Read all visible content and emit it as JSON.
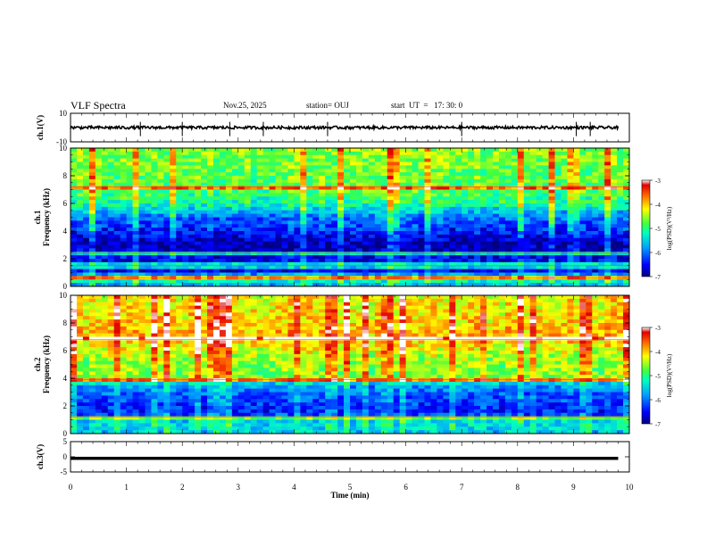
{
  "header": {
    "title": "VLF Spectra",
    "date": "Nov.25, 2025",
    "station": "station= OUJ",
    "start": "start  UT  =   17: 30: 0"
  },
  "chart_data": [
    {
      "type": "line",
      "name": "ch1-waveform",
      "ylabel": "ch.1(V)",
      "ylim": [
        -10,
        10
      ],
      "yticks": [
        10,
        -10
      ],
      "xlim": [
        0,
        10
      ],
      "baseline": 0,
      "noise_amplitude": 1,
      "spike_times_min": [
        1.25,
        2.0,
        2.85,
        3.45,
        4.6,
        7.0,
        9.05,
        9.3
      ],
      "trace_end_min": 9.8
    },
    {
      "type": "heatmap",
      "name": "ch1-spectrogram",
      "ylabel": "ch.1\nFrequency (kHz)",
      "ylim": [
        0,
        10
      ],
      "yticks": [
        0,
        2,
        4,
        6,
        8,
        10
      ],
      "xlim": [
        0,
        10
      ],
      "colorbar": {
        "label": "log(PSD)(V²/Hz)",
        "range": [
          -7,
          -3
        ],
        "ticks": [
          -3,
          -4,
          -5,
          -6,
          -7
        ]
      },
      "band_profile_khz": [
        {
          "f": 0,
          "v": -5.8
        },
        {
          "f": 0.6,
          "v": -5.0
        },
        {
          "f": 1.2,
          "v": -6.8
        },
        {
          "f": 2.0,
          "v": -6.5
        },
        {
          "f": 3.0,
          "v": -6.9
        },
        {
          "f": 4.0,
          "v": -6.4
        },
        {
          "f": 5.0,
          "v": -6.0
        },
        {
          "f": 6.0,
          "v": -5.1
        },
        {
          "f": 7.0,
          "v": -4.8
        },
        {
          "f": 8.5,
          "v": -4.7
        },
        {
          "f": 10,
          "v": -4.6
        }
      ],
      "bright_lines_khz": [
        0.6,
        1.5,
        2.4,
        7.2
      ]
    },
    {
      "type": "heatmap",
      "name": "ch2-spectrogram",
      "ylabel": "ch.2\nFrequency (kHz)",
      "ylim": [
        0,
        10
      ],
      "yticks": [
        0,
        2,
        4,
        6,
        8,
        10
      ],
      "xlim": [
        0,
        10
      ],
      "colorbar": {
        "label": "log(PSD)(V²/Hz)",
        "range": [
          -7,
          -3
        ],
        "ticks": [
          -3,
          -4,
          -5,
          -6,
          -7
        ]
      },
      "band_profile_khz": [
        {
          "f": 0,
          "v": -5.6
        },
        {
          "f": 0.8,
          "v": -5.4
        },
        {
          "f": 1.5,
          "v": -6.4
        },
        {
          "f": 2.5,
          "v": -6.2
        },
        {
          "f": 3.5,
          "v": -5.8
        },
        {
          "f": 4.0,
          "v": -4.6
        },
        {
          "f": 5.0,
          "v": -4.6
        },
        {
          "f": 6.0,
          "v": -4.3
        },
        {
          "f": 7.0,
          "v": -3.9
        },
        {
          "f": 8.5,
          "v": -4.1
        },
        {
          "f": 10,
          "v": -4.2
        }
      ],
      "bright_lines_khz": [
        1.2,
        3.9,
        6.8
      ]
    },
    {
      "type": "line",
      "name": "ch3-waveform",
      "ylabel": "ch.3(V)",
      "ylim": [
        -5,
        5
      ],
      "yticks": [
        5,
        0,
        -5
      ],
      "xlim": [
        0,
        10
      ],
      "baseline": -0.5,
      "trace_end_min": 9.8
    }
  ],
  "xaxis": {
    "label": "Time  (min)",
    "ticks": [
      0,
      1,
      2,
      3,
      4,
      5,
      6,
      7,
      8,
      9,
      10
    ]
  }
}
